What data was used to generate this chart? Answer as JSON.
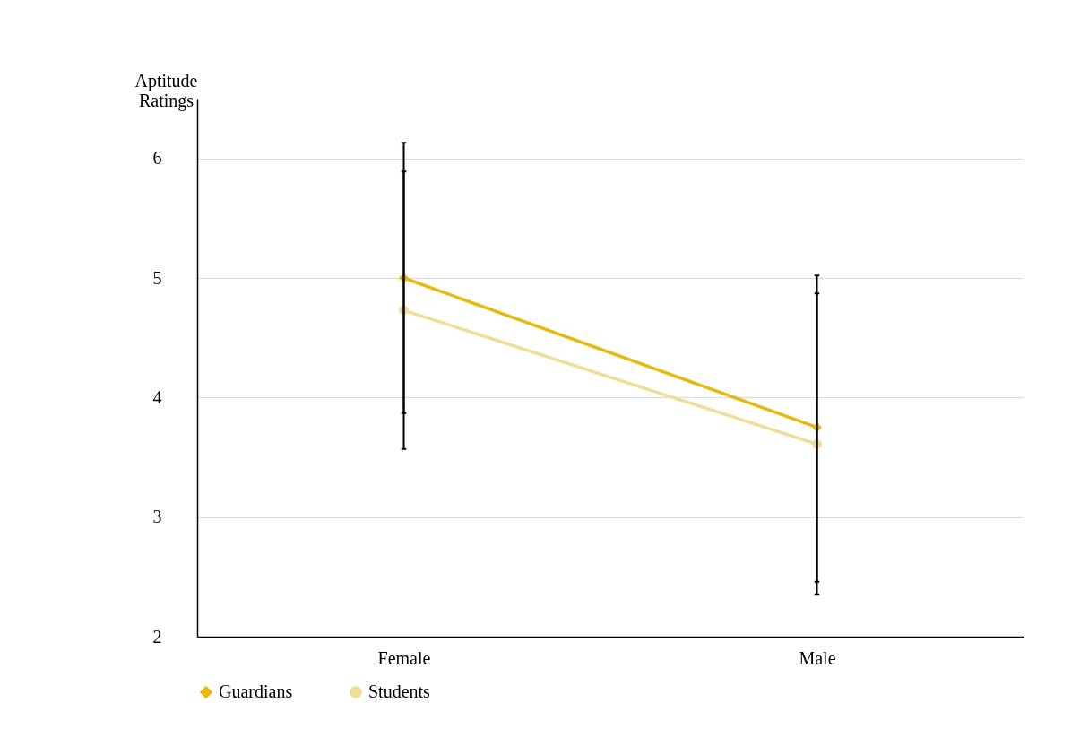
{
  "chart_data": {
    "type": "line",
    "ylabel": "Aptitude Ratings",
    "categories": [
      "Female",
      "Male"
    ],
    "ylim": [
      2,
      6.5
    ],
    "yticks": [
      2,
      3,
      4,
      5,
      6
    ],
    "grid": "y",
    "legend": "bottom",
    "series": [
      {
        "name": "Guardians",
        "color": "#e8b90c",
        "marker": "diamond",
        "values": [
          5.0,
          3.75
        ],
        "errors": [
          [
            3.87,
            6.13
          ],
          [
            2.46,
            5.02
          ]
        ]
      },
      {
        "name": "Students",
        "color": "#f3dc98",
        "marker": "circle",
        "values": [
          4.73,
          3.61
        ],
        "errors": [
          [
            3.57,
            5.89
          ],
          [
            2.35,
            4.87
          ]
        ]
      }
    ]
  }
}
